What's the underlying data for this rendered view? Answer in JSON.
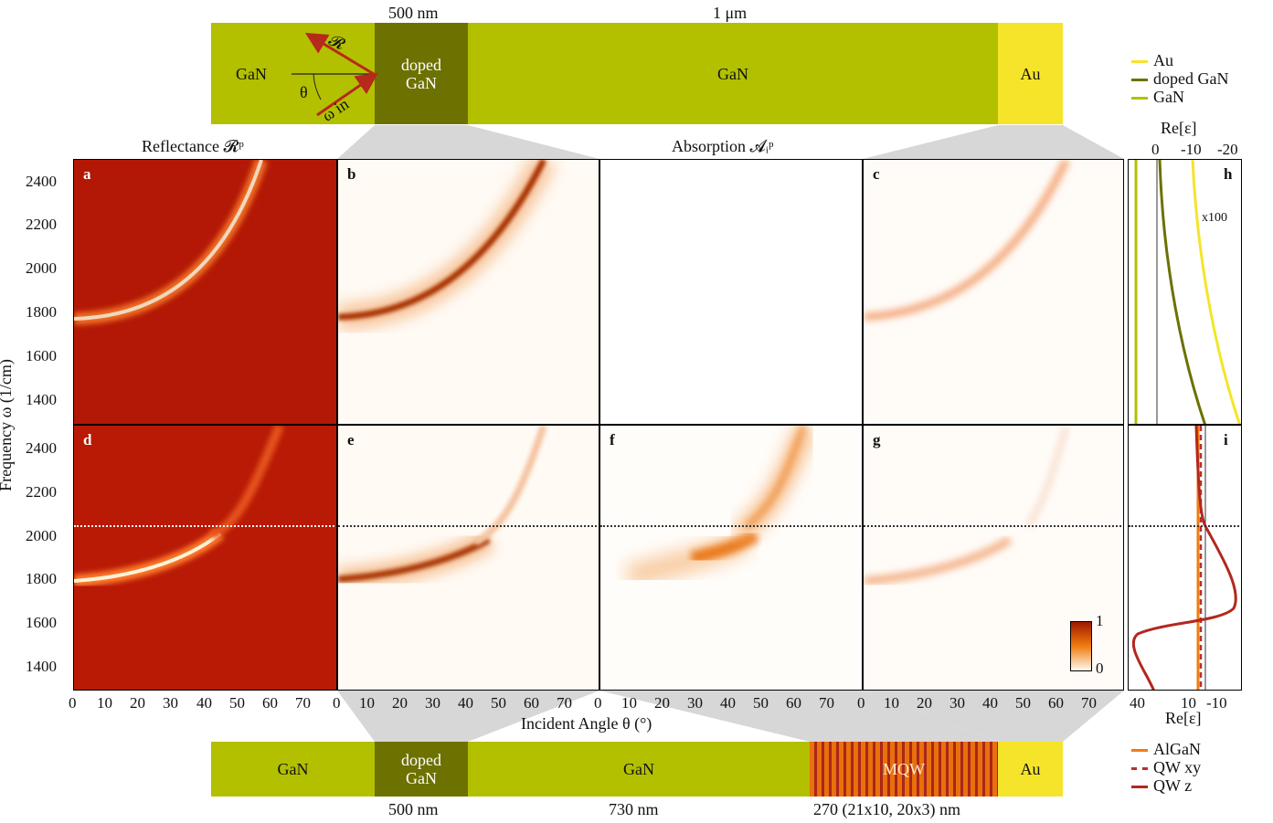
{
  "top_stack": {
    "dim_left": "500 nm",
    "dim_right": "1 μm",
    "layers": [
      "GaN",
      "doped GaN",
      "GaN",
      "Au"
    ],
    "angle_symbol": "θ",
    "refl_symbol": "𝓡",
    "omega_in": "ω in"
  },
  "bottom_stack": {
    "layers": [
      "GaN",
      "doped GaN",
      "GaN",
      "MQW",
      "Au"
    ],
    "dims": [
      "500 nm",
      "730 nm",
      "270 (21x10, 20x3) nm"
    ]
  },
  "headers": {
    "reflectance": "Reflectance 𝓡ᵖ",
    "absorption": "Absorption 𝓐ᵢᵖ"
  },
  "axes": {
    "ylabel": "Frequency ω (1/cm)",
    "xlabel": "Incident Angle θ (°)",
    "yticks": [
      "2400",
      "2200",
      "2000",
      "1800",
      "1600",
      "1400"
    ],
    "xticks": [
      "0",
      "10",
      "20",
      "30",
      "40",
      "50",
      "60",
      "70"
    ]
  },
  "panel_letters": [
    "a",
    "b",
    "c",
    "d",
    "e",
    "f",
    "g",
    "h",
    "i"
  ],
  "side_top": {
    "legend": [
      "Au",
      "doped GaN",
      "GaN"
    ],
    "title": "Re[ε]",
    "ticks": [
      "0",
      "-10",
      "-20"
    ],
    "note": "x100"
  },
  "side_bottom": {
    "legend": [
      "AlGaN",
      "QW xy",
      "QW z"
    ],
    "title": "Re[ε]",
    "ticks": [
      "40",
      "10",
      "-10"
    ]
  },
  "colorbar": {
    "max": "1",
    "min": "0"
  },
  "colors": {
    "gan": "#b2c000",
    "doped_gan": "#6c7100",
    "au": "#f5e42a",
    "algan": "#f07d10",
    "qw_xy": "#b5322a",
    "qw_z": "#b3271e",
    "reflect_bg": "#b81a06"
  }
}
